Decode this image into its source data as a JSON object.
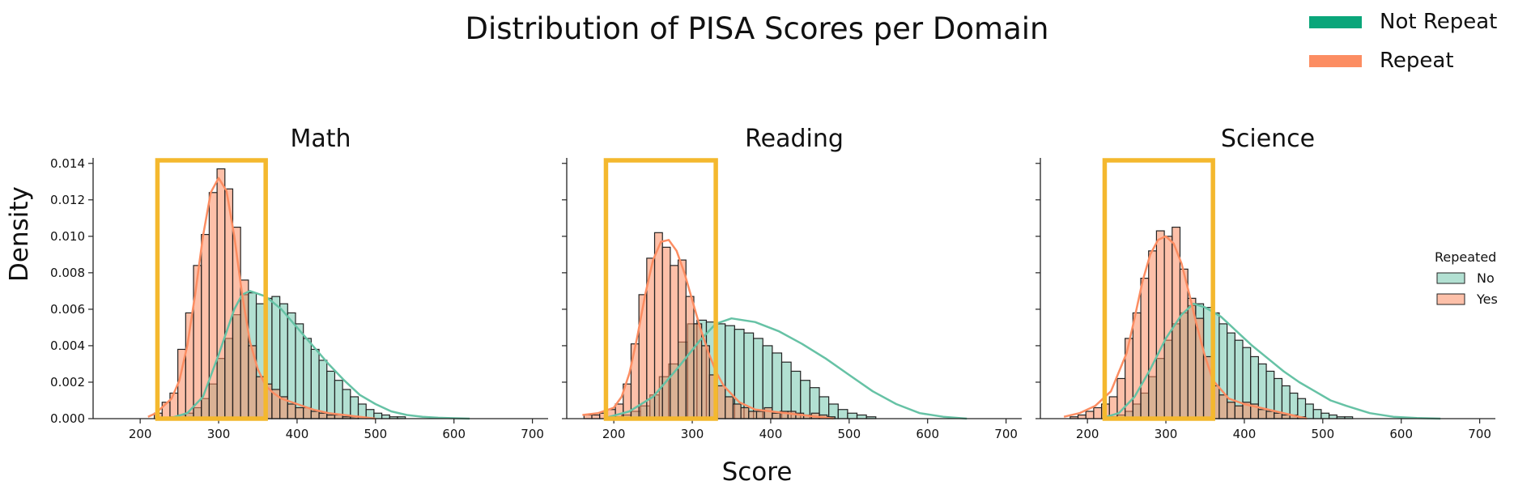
{
  "figure": {
    "title": "Distribution of PISA Scores per Domain",
    "xlabel": "Score",
    "ylabel": "Density",
    "top_legend": [
      {
        "label": "Not Repeat",
        "color": "#0aa67a"
      },
      {
        "label": "Repeat",
        "color": "#fc8d62"
      }
    ],
    "inner_legend": {
      "title": "Repeated",
      "items": [
        {
          "label": "No",
          "color": "#66c2a5"
        },
        {
          "label": "Yes",
          "color": "#fc8d62"
        }
      ]
    },
    "highlight_color": "#f4b82e"
  },
  "chart_data": [
    {
      "type": "histogram",
      "title": "Math",
      "xlim": [
        140,
        720
      ],
      "ylim": [
        0,
        0.0143
      ],
      "xticks": [
        200,
        300,
        400,
        500,
        600,
        700
      ],
      "yticks": [
        0.0,
        0.002,
        0.004,
        0.006,
        0.008,
        0.01,
        0.012,
        0.014
      ],
      "highlight_range": [
        222,
        360
      ],
      "series": [
        {
          "name": "No",
          "bin_start": 218,
          "bin_width": 10,
          "values": [
            0.0,
            0.0,
            0.0001,
            0.0002,
            0.0003,
            0.0006,
            0.0011,
            0.0019,
            0.0033,
            0.0044,
            0.0057,
            0.0068,
            0.0069,
            0.0063,
            0.0066,
            0.0067,
            0.0063,
            0.0058,
            0.0052,
            0.0044,
            0.0038,
            0.0032,
            0.0026,
            0.0021,
            0.0016,
            0.0012,
            0.0008,
            0.0005,
            0.0003,
            0.0002,
            0.0001,
            0.0001
          ],
          "kde_x": [
            220,
            240,
            260,
            280,
            300,
            320,
            330,
            340,
            360,
            380,
            400,
            420,
            440,
            460,
            480,
            500,
            520,
            540,
            560,
            580,
            600,
            620
          ],
          "kde_y": [
            0.0,
            5e-05,
            0.0003,
            0.0012,
            0.0035,
            0.006,
            0.0068,
            0.007,
            0.0067,
            0.006,
            0.005,
            0.004,
            0.003,
            0.0021,
            0.0013,
            0.0008,
            0.0004,
            0.0002,
            0.0001,
            5e-05,
            2e-05,
            0.0
          ]
        },
        {
          "name": "Yes",
          "bin_start": 218,
          "bin_width": 10,
          "values": [
            0.0003,
            0.0009,
            0.0014,
            0.0038,
            0.0058,
            0.0084,
            0.0101,
            0.0124,
            0.0137,
            0.0126,
            0.0105,
            0.0076,
            0.004,
            0.0023,
            0.0019,
            0.0016,
            0.0012,
            0.0008,
            0.0006,
            0.0006,
            0.0004,
            0.0003,
            0.0002,
            0.0002,
            0.0001,
            0.0001
          ],
          "kde_x": [
            210,
            220,
            240,
            250,
            260,
            270,
            280,
            290,
            300,
            310,
            320,
            330,
            340,
            350,
            360,
            370,
            380,
            400,
            420,
            440,
            460,
            480,
            500
          ],
          "kde_y": [
            0.0001,
            0.0003,
            0.0011,
            0.0021,
            0.004,
            0.0068,
            0.01,
            0.0124,
            0.0132,
            0.0125,
            0.01,
            0.0068,
            0.0042,
            0.0027,
            0.0018,
            0.0014,
            0.0011,
            0.0008,
            0.0005,
            0.0003,
            0.0002,
            0.0001,
            0.0
          ]
        }
      ]
    },
    {
      "type": "histogram",
      "title": "Reading",
      "xlim": [
        140,
        720
      ],
      "ylim": [
        0,
        0.0143
      ],
      "xticks": [
        200,
        300,
        400,
        500,
        600,
        700
      ],
      "yticks": [
        0.0,
        0.002,
        0.004,
        0.006,
        0.008,
        0.01,
        0.012,
        0.014
      ],
      "highlight_range": [
        190,
        330
      ],
      "series": [
        {
          "name": "No",
          "bin_start": 198,
          "bin_width": 12,
          "values": [
            0.0001,
            0.0002,
            0.0004,
            0.0007,
            0.0013,
            0.0023,
            0.003,
            0.0042,
            0.0052,
            0.0054,
            0.0053,
            0.0052,
            0.0051,
            0.0049,
            0.0047,
            0.0044,
            0.004,
            0.0036,
            0.0031,
            0.0026,
            0.0021,
            0.0017,
            0.0012,
            0.0008,
            0.0005,
            0.0003,
            0.0002,
            0.0001
          ],
          "kde_x": [
            190,
            220,
            250,
            280,
            310,
            330,
            350,
            380,
            410,
            440,
            470,
            500,
            530,
            560,
            590,
            620,
            650
          ],
          "kde_y": [
            5e-05,
            0.0004,
            0.0012,
            0.0027,
            0.0043,
            0.0052,
            0.0055,
            0.0053,
            0.0048,
            0.0041,
            0.0033,
            0.0024,
            0.0015,
            0.0008,
            0.0003,
            0.0001,
            0.0
          ]
        },
        {
          "name": "Yes",
          "bin_start": 162,
          "bin_width": 10,
          "values": [
            0.0002,
            0.0002,
            0.0003,
            0.0005,
            0.0008,
            0.0019,
            0.0041,
            0.0068,
            0.0088,
            0.0102,
            0.0094,
            0.0084,
            0.0087,
            0.0067,
            0.0052,
            0.004,
            0.0024,
            0.0018,
            0.0012,
            0.0008,
            0.0006,
            0.0004,
            0.0004,
            0.0006,
            0.0003,
            0.0004,
            0.0004,
            0.0003,
            0.0002,
            0.0003,
            0.0002,
            0.0001
          ],
          "kde_x": [
            160,
            180,
            200,
            210,
            220,
            230,
            240,
            250,
            260,
            270,
            280,
            290,
            300,
            310,
            320,
            330,
            340,
            360,
            380,
            400,
            420,
            440,
            460,
            480
          ],
          "kde_y": [
            0.0002,
            0.0003,
            0.0006,
            0.0012,
            0.0025,
            0.0045,
            0.0068,
            0.0087,
            0.0097,
            0.0098,
            0.0092,
            0.008,
            0.0065,
            0.005,
            0.0037,
            0.0026,
            0.0018,
            0.0009,
            0.0005,
            0.0004,
            0.0003,
            0.0002,
            0.0001,
            0.0
          ]
        }
      ]
    },
    {
      "type": "histogram",
      "title": "Science",
      "xlim": [
        140,
        720
      ],
      "ylim": [
        0,
        0.0143
      ],
      "xticks": [
        200,
        300,
        400,
        500,
        600,
        700
      ],
      "yticks": [
        0.0,
        0.002,
        0.004,
        0.006,
        0.008,
        0.01,
        0.012,
        0.014
      ],
      "highlight_range": [
        222,
        360
      ],
      "series": [
        {
          "name": "No",
          "bin_start": 218,
          "bin_width": 10,
          "values": [
            0.0,
            0.0001,
            0.0002,
            0.0004,
            0.0008,
            0.0014,
            0.0023,
            0.0033,
            0.0043,
            0.0052,
            0.0058,
            0.0062,
            0.0063,
            0.0061,
            0.0058,
            0.0052,
            0.0047,
            0.0043,
            0.0039,
            0.0034,
            0.003,
            0.0026,
            0.0022,
            0.0018,
            0.0014,
            0.0011,
            0.0008,
            0.0005,
            0.0003,
            0.0002,
            0.0001,
            0.0001
          ],
          "kde_x": [
            220,
            240,
            260,
            280,
            300,
            320,
            335,
            350,
            370,
            390,
            410,
            430,
            450,
            470,
            490,
            510,
            530,
            560,
            590,
            620,
            650
          ],
          "kde_y": [
            5e-05,
            0.0003,
            0.0012,
            0.0027,
            0.0044,
            0.0057,
            0.0063,
            0.0061,
            0.0056,
            0.0048,
            0.004,
            0.0033,
            0.0026,
            0.002,
            0.0015,
            0.001,
            0.0007,
            0.0003,
            0.0001,
            3e-05,
            0.0
          ]
        },
        {
          "name": "Yes",
          "bin_start": 178,
          "bin_width": 10,
          "values": [
            0.0001,
            0.0002,
            0.0004,
            0.0006,
            0.0008,
            0.0012,
            0.0022,
            0.0044,
            0.0058,
            0.0077,
            0.0092,
            0.0103,
            0.01,
            0.0105,
            0.0082,
            0.0066,
            0.0055,
            0.0034,
            0.0018,
            0.0013,
            0.0009,
            0.0007,
            0.0009,
            0.0008,
            0.0005,
            0.0004,
            0.0003,
            0.0002,
            0.0002,
            0.0001
          ],
          "kde_x": [
            170,
            190,
            210,
            230,
            250,
            260,
            270,
            280,
            290,
            300,
            310,
            320,
            330,
            340,
            350,
            360,
            380,
            400,
            420,
            440,
            460,
            480
          ],
          "kde_y": [
            0.0001,
            0.0003,
            0.0007,
            0.0015,
            0.0036,
            0.0055,
            0.0075,
            0.009,
            0.0098,
            0.01,
            0.0096,
            0.0085,
            0.0068,
            0.005,
            0.0034,
            0.0021,
            0.0011,
            0.0008,
            0.0006,
            0.0004,
            0.0002,
            0.0
          ]
        }
      ]
    }
  ]
}
